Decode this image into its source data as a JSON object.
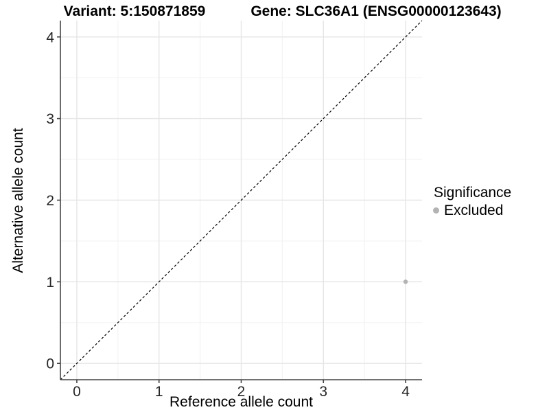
{
  "chart_data": {
    "type": "scatter",
    "title_left": "Variant: 5:150871859",
    "title_right": "Gene: SLC36A1 (ENSG00000123643)",
    "xlabel": "Reference allele count",
    "ylabel": "Alternative allele count",
    "xlim": [
      -0.2,
      4.2
    ],
    "ylim": [
      -0.2,
      4.2
    ],
    "x_ticks": [
      0,
      1,
      2,
      3,
      4
    ],
    "y_ticks": [
      0,
      1,
      2,
      3,
      4
    ],
    "minor_step": 0.5,
    "grid": "major+minor",
    "identity_line": {
      "slope": 1,
      "intercept": 0,
      "style": "dashed",
      "color": "#000000"
    },
    "series": [
      {
        "name": "Excluded",
        "color": "#b3b3b3",
        "points": [
          {
            "x": 4,
            "y": 1
          }
        ]
      }
    ],
    "legend": {
      "title": "Significance",
      "position": "right",
      "entries": [
        {
          "label": "Excluded",
          "color": "#b3b3b3"
        }
      ]
    },
    "style": {
      "grid_major_color": "#e6e6e6",
      "grid_minor_color": "#f3f3f3",
      "axis_color": "#444444",
      "tick_text_color": "#262626",
      "point_radius": 3.2
    }
  }
}
